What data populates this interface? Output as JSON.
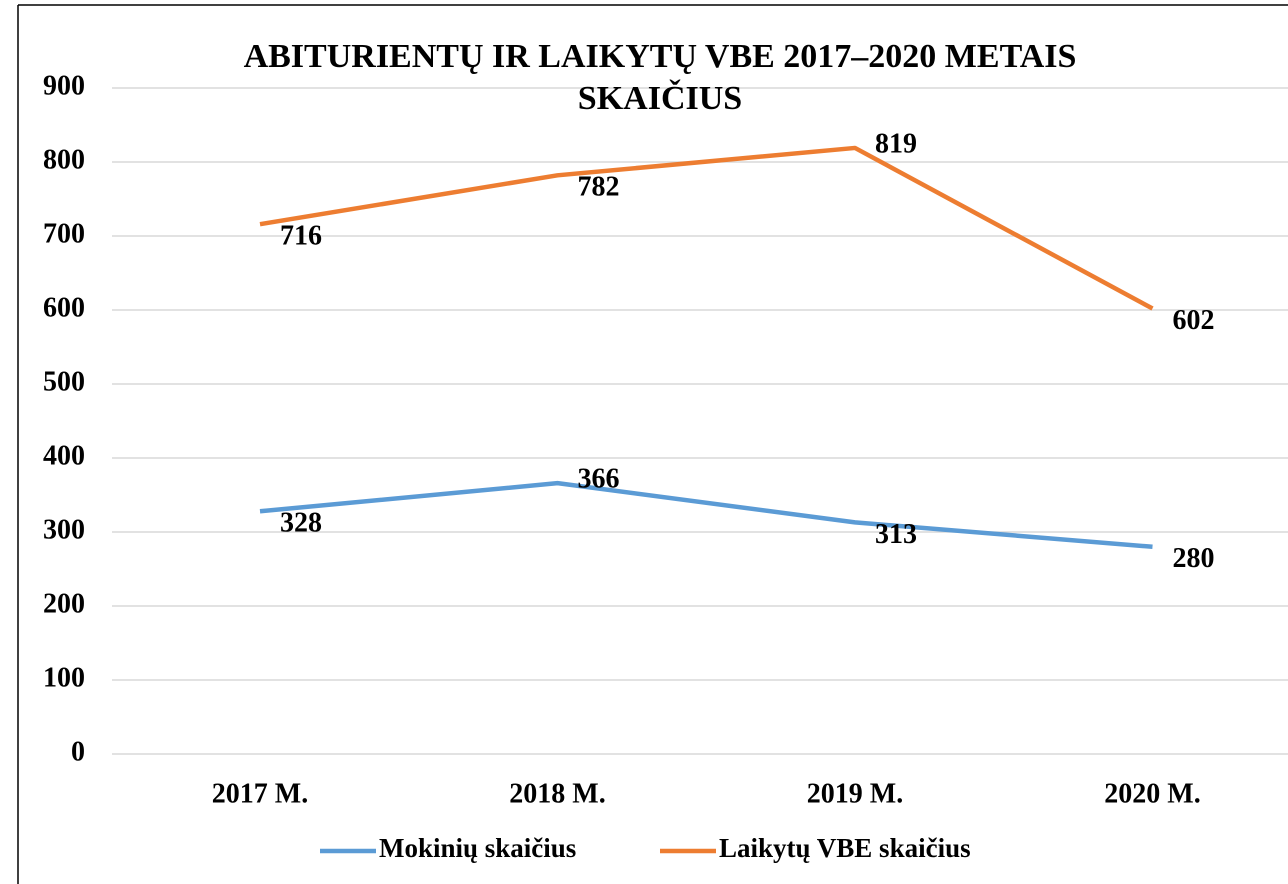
{
  "chart_data": {
    "type": "line",
    "title": "ABITURIENTŲ IR LAIKYTŲ VBE 2017–2020 METAIS SKAIČIUS",
    "categories": [
      "2017 M.",
      "2018 M.",
      "2019 M.",
      "2020 M."
    ],
    "series": [
      {
        "name": "Mokinių skaičius",
        "color": "#5b9bd5",
        "values": [
          328,
          366,
          313,
          280
        ]
      },
      {
        "name": "Laikytų VBE skaičius",
        "color": "#ed7d31",
        "values": [
          716,
          782,
          819,
          602
        ]
      }
    ],
    "ylim": [
      0,
      900
    ],
    "yticks": [
      0,
      100,
      200,
      300,
      400,
      500,
      600,
      700,
      800,
      900
    ],
    "grid": true,
    "legend": "bottom"
  }
}
